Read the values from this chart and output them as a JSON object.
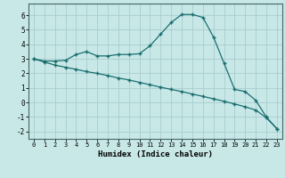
{
  "xlabel": "Humidex (Indice chaleur)",
  "bg_color": "#c8e8e8",
  "grid_color": "#aacccc",
  "line_color": "#1a6e6e",
  "x_min": -0.5,
  "x_max": 23.5,
  "y_min": -2.5,
  "y_max": 6.8,
  "curve1_x": [
    0,
    1,
    2,
    3,
    4,
    5,
    6,
    7,
    8,
    9,
    10,
    11,
    12,
    13,
    14,
    15,
    16,
    17,
    18,
    19,
    20,
    21,
    22,
    23
  ],
  "curve1_y": [
    3.0,
    2.85,
    2.85,
    2.9,
    3.3,
    3.5,
    3.2,
    3.2,
    3.3,
    3.3,
    3.35,
    3.9,
    4.7,
    5.5,
    6.05,
    6.05,
    5.85,
    4.5,
    2.7,
    0.9,
    0.75,
    0.15,
    -1.0,
    -1.8
  ],
  "curve2_x": [
    0,
    1,
    2,
    3,
    4,
    5,
    6,
    7,
    8,
    9,
    10,
    11,
    12,
    13,
    14,
    15,
    16,
    17,
    18,
    19,
    20,
    21,
    22,
    23
  ],
  "curve2_y": [
    3.0,
    2.78,
    2.57,
    2.42,
    2.28,
    2.12,
    2.0,
    1.85,
    1.68,
    1.55,
    1.38,
    1.22,
    1.05,
    0.9,
    0.75,
    0.58,
    0.42,
    0.25,
    0.08,
    -0.1,
    -0.3,
    -0.52,
    -1.05,
    -1.8
  ],
  "yticks": [
    -2,
    -1,
    0,
    1,
    2,
    3,
    4,
    5,
    6
  ],
  "xticks": [
    0,
    1,
    2,
    3,
    4,
    5,
    6,
    7,
    8,
    9,
    10,
    11,
    12,
    13,
    14,
    15,
    16,
    17,
    18,
    19,
    20,
    21,
    22,
    23
  ]
}
